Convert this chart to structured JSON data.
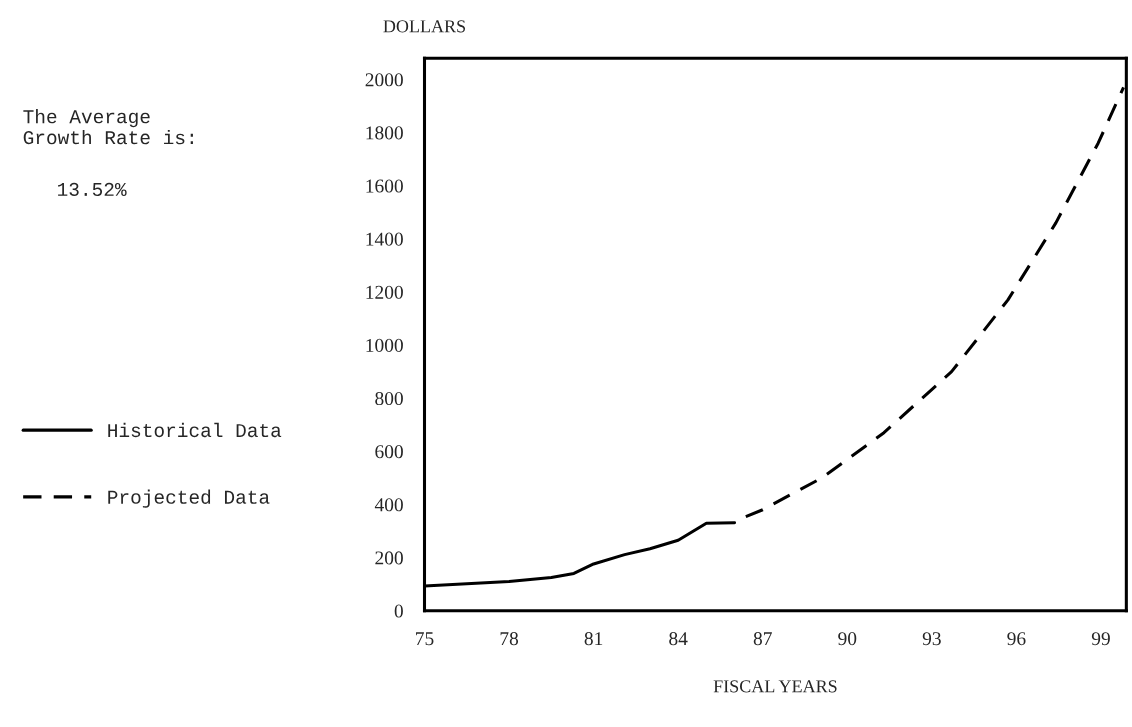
{
  "chart_data": {
    "type": "line",
    "xlabel": "FISCAL YEARS",
    "ylabel": "DOLLARS",
    "annotations": [
      "The Average\nGrowth Rate is:",
      "13.52%"
    ],
    "series": [
      {
        "name": "Historical Data",
        "color": "#000000",
        "line_style": "solid",
        "x": [
          75,
          78,
          79.5,
          80.3,
          81,
          82.1,
          83,
          84,
          85,
          86
        ],
        "values": [
          93,
          110,
          125,
          140,
          176,
          211,
          233,
          265,
          329,
          331
        ]
      },
      {
        "name": "Projected Data",
        "color": "#000000",
        "line_style": "dashed",
        "x": [
          86.4,
          87,
          89.1,
          91.3,
          93.7,
          95.7,
          97.4,
          98.9,
          99.8
        ],
        "values": [
          354,
          380,
          500,
          670,
          900,
          1170,
          1460,
          1760,
          1970
        ]
      }
    ],
    "xlim": [
      75,
      99.9
    ],
    "xticks": [
      75,
      78,
      81,
      84,
      87,
      90,
      93,
      96,
      99
    ],
    "ylim": [
      0,
      2080
    ],
    "yticks": [
      0,
      200,
      400,
      600,
      800,
      1000,
      1200,
      1400,
      1600,
      1800,
      2000
    ],
    "grid": false,
    "legend": "left",
    "marker": "none"
  }
}
